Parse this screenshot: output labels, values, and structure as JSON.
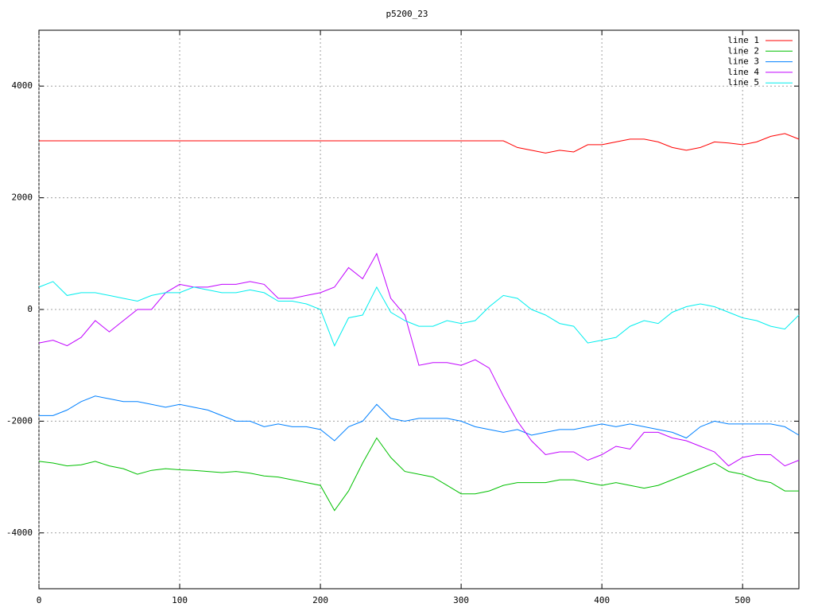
{
  "chart_data": {
    "type": "line",
    "title": "p5200_23",
    "x": [
      0,
      10,
      20,
      30,
      40,
      50,
      60,
      70,
      80,
      90,
      100,
      110,
      120,
      130,
      140,
      150,
      160,
      170,
      180,
      190,
      200,
      210,
      220,
      230,
      240,
      250,
      260,
      270,
      280,
      290,
      300,
      310,
      320,
      330,
      340,
      350,
      360,
      370,
      380,
      390,
      400,
      410,
      420,
      430,
      440,
      450,
      460,
      470,
      480,
      490,
      500,
      510,
      520,
      530,
      540
    ],
    "series": [
      {
        "name": "line 1",
        "color": "#ff0000",
        "values": [
          3020,
          3020,
          3020,
          3020,
          3020,
          3020,
          3020,
          3020,
          3020,
          3020,
          3020,
          3020,
          3020,
          3020,
          3020,
          3020,
          3020,
          3020,
          3020,
          3020,
          3020,
          3020,
          3020,
          3020,
          3020,
          3020,
          3020,
          3020,
          3020,
          3020,
          3020,
          3020,
          3020,
          3020,
          2900,
          2850,
          2800,
          2850,
          2820,
          2950,
          2950,
          3000,
          3050,
          3050,
          3000,
          2900,
          2850,
          2900,
          3000,
          2980,
          2950,
          3000,
          3100,
          3150,
          3050
        ]
      },
      {
        "name": "line 2",
        "color": "#00c000",
        "values": [
          -2720,
          -2750,
          -2800,
          -2780,
          -2720,
          -2800,
          -2850,
          -2950,
          -2880,
          -2850,
          -2870,
          -2880,
          -2900,
          -2920,
          -2900,
          -2930,
          -2980,
          -3000,
          -3050,
          -3100,
          -3150,
          -3600,
          -3250,
          -2750,
          -2300,
          -2650,
          -2900,
          -2950,
          -3000,
          -3150,
          -3300,
          -3300,
          -3250,
          -3150,
          -3100,
          -3100,
          -3100,
          -3050,
          -3050,
          -3100,
          -3150,
          -3100,
          -3150,
          -3200,
          -3150,
          -3050,
          -2950,
          -2850,
          -2750,
          -2900,
          -2950,
          -3050,
          -3100,
          -3250,
          -3250
        ]
      },
      {
        "name": "line 3",
        "color": "#0080ff",
        "values": [
          -1900,
          -1900,
          -1800,
          -1650,
          -1550,
          -1600,
          -1650,
          -1650,
          -1700,
          -1750,
          -1700,
          -1750,
          -1800,
          -1900,
          -2000,
          -2000,
          -2100,
          -2050,
          -2100,
          -2100,
          -2150,
          -2350,
          -2100,
          -2000,
          -1700,
          -1950,
          -2000,
          -1950,
          -1950,
          -1950,
          -2000,
          -2100,
          -2150,
          -2200,
          -2150,
          -2250,
          -2200,
          -2150,
          -2150,
          -2100,
          -2050,
          -2100,
          -2050,
          -2100,
          -2150,
          -2200,
          -2300,
          -2100,
          -2000,
          -2050,
          -2050,
          -2050,
          -2050,
          -2100,
          -2250
        ]
      },
      {
        "name": "line 4",
        "color": "#c000ff",
        "values": [
          -600,
          -550,
          -650,
          -500,
          -200,
          -400,
          -200,
          0,
          0,
          300,
          450,
          400,
          400,
          450,
          450,
          500,
          450,
          200,
          200,
          250,
          300,
          400,
          750,
          550,
          1000,
          200,
          -100,
          -1000,
          -950,
          -950,
          -1000,
          -900,
          -1050,
          -1550,
          -2000,
          -2350,
          -2600,
          -2550,
          -2550,
          -2700,
          -2600,
          -2450,
          -2500,
          -2200,
          -2200,
          -2300,
          -2350,
          -2450,
          -2550,
          -2800,
          -2650,
          -2600,
          -2600,
          -2800,
          -2700
        ]
      },
      {
        "name": "line 5",
        "color": "#00eeee",
        "values": [
          400,
          500,
          250,
          300,
          300,
          250,
          200,
          150,
          250,
          300,
          300,
          400,
          350,
          300,
          300,
          350,
          300,
          150,
          150,
          100,
          0,
          -650,
          -150,
          -100,
          400,
          -50,
          -200,
          -300,
          -300,
          -200,
          -250,
          -200,
          50,
          250,
          200,
          0,
          -100,
          -250,
          -300,
          -600,
          -550,
          -500,
          -300,
          -200,
          -250,
          -50,
          50,
          100,
          50,
          -50,
          -150,
          -200,
          -300,
          -350,
          -100
        ]
      }
    ],
    "xlim": [
      0,
      540
    ],
    "ylim": [
      -5000,
      5000
    ],
    "xticks": [
      0,
      100,
      200,
      300,
      400,
      500
    ],
    "yticks": [
      -4000,
      -2000,
      0,
      2000,
      4000
    ],
    "grid": true,
    "legend": "top-right"
  }
}
